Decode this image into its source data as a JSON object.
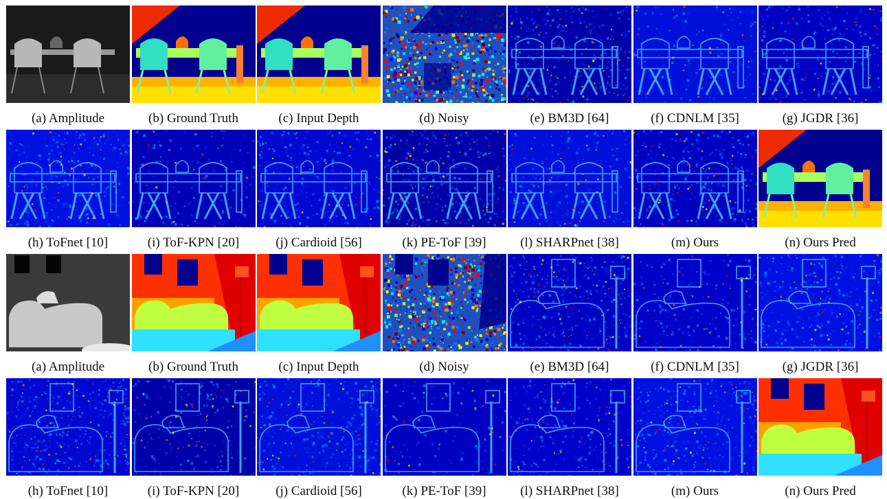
{
  "figure": {
    "rows": [
      {
        "scene": "dining",
        "panels": [
          {
            "caption": "(a) Amplitude",
            "kind": "amplitude"
          },
          {
            "caption": "(b) Ground Truth",
            "kind": "depth"
          },
          {
            "caption": "(c) Input Depth",
            "kind": "depth"
          },
          {
            "caption": "(d) Noisy",
            "kind": "noisy"
          },
          {
            "caption": "(e) BM3D [64]",
            "kind": "error"
          },
          {
            "caption": "(f) CDNLM [35]",
            "kind": "error"
          },
          {
            "caption": "(g) JGDR [36]",
            "kind": "error"
          }
        ]
      },
      {
        "scene": "dining",
        "panels": [
          {
            "caption": "(h) ToFnet [10]",
            "kind": "error"
          },
          {
            "caption": "(i) ToF-KPN [20]",
            "kind": "error"
          },
          {
            "caption": "(j) Cardioid [56]",
            "kind": "error"
          },
          {
            "caption": "(k) PE-ToF [39]",
            "kind": "error"
          },
          {
            "caption": "(l) SHARPnet [38]",
            "kind": "error"
          },
          {
            "caption": "(m) Ours",
            "kind": "error"
          },
          {
            "caption": "(n) Ours Pred",
            "kind": "depth"
          }
        ]
      },
      {
        "scene": "living",
        "panels": [
          {
            "caption": "(a) Amplitude",
            "kind": "amplitude"
          },
          {
            "caption": "(b) Ground Truth",
            "kind": "depth"
          },
          {
            "caption": "(c) Input Depth",
            "kind": "depth"
          },
          {
            "caption": "(d) Noisy",
            "kind": "noisy"
          },
          {
            "caption": "(e) BM3D [64]",
            "kind": "error"
          },
          {
            "caption": "(f) CDNLM [35]",
            "kind": "error"
          },
          {
            "caption": "(g) JGDR [36]",
            "kind": "error"
          }
        ]
      },
      {
        "scene": "living",
        "panels": [
          {
            "caption": "(h) ToFnet [10]",
            "kind": "error"
          },
          {
            "caption": "(i) ToF-KPN [20]",
            "kind": "error"
          },
          {
            "caption": "(j) Cardioid [56]",
            "kind": "error"
          },
          {
            "caption": "(k) PE-ToF [39]",
            "kind": "error"
          },
          {
            "caption": "(l) SHARPnet [38]",
            "kind": "error"
          },
          {
            "caption": "(m) Ours",
            "kind": "error"
          },
          {
            "caption": "(n) Ours Pred",
            "kind": "depth"
          }
        ]
      }
    ],
    "colors": {
      "background": "#ffffff",
      "jet_low": "#00008f",
      "jet_blue": "#0000ff",
      "jet_cyan": "#00ffff",
      "jet_yellow": "#ffff00",
      "jet_red": "#ff0000",
      "jet_dark_red": "#800000"
    }
  }
}
